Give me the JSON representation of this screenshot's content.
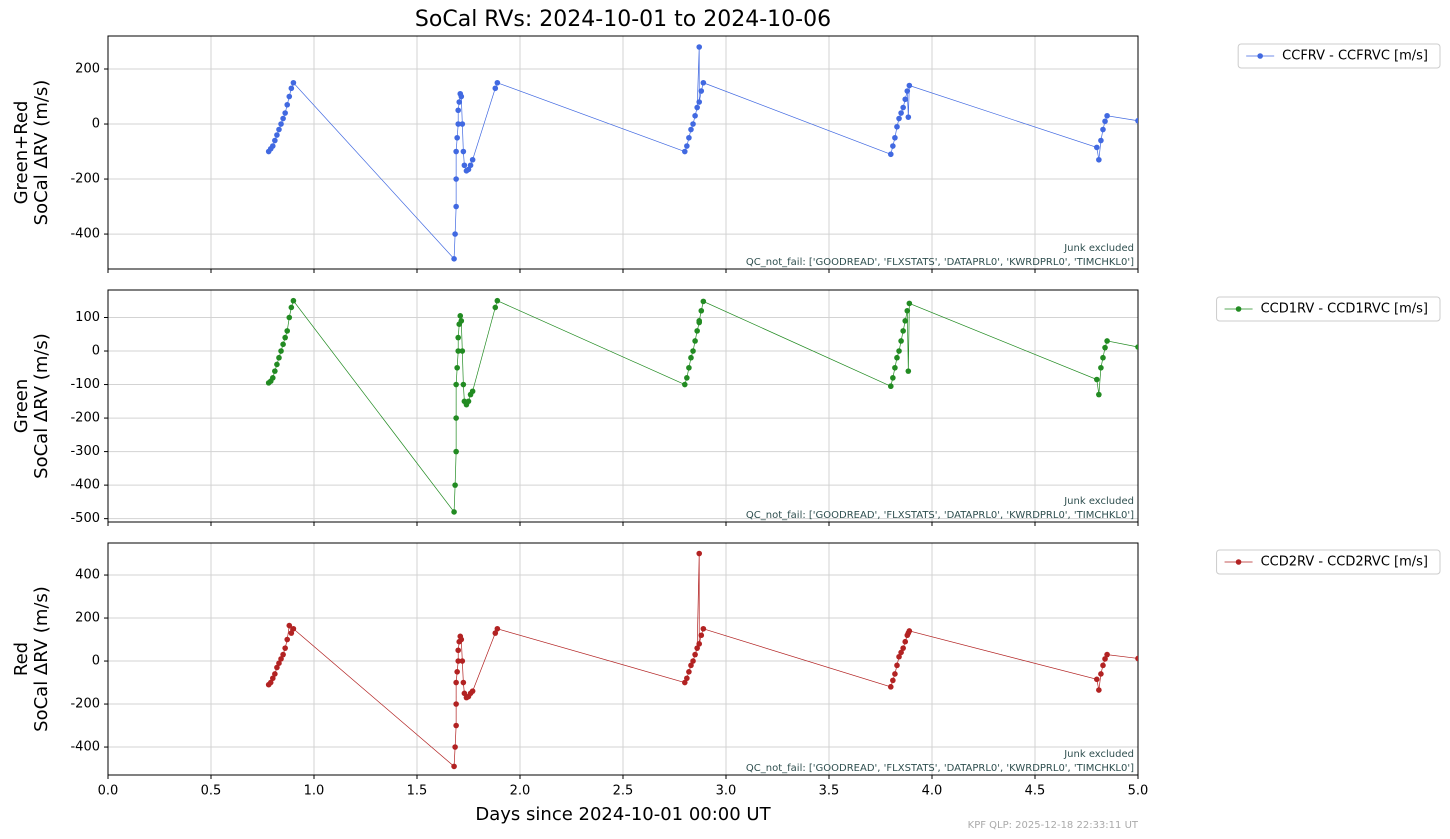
{
  "title": "SoCal RVs: 2024-10-01 to 2024-10-06",
  "footer": "KPF QLP: 2025-12-18 22:33:11 UT",
  "chart_data": [
    {
      "type": "line",
      "ylabel": [
        "Green+Red",
        "SoCal ΔRV (m/s)"
      ],
      "annotations": [
        "Junk excluded",
        "QC_not_fail: ['GOODREAD', 'FLXSTATS', 'DATAPRL0', 'KWRDPRL0', 'TIMCHKL0']"
      ],
      "xlim": [
        0,
        5
      ],
      "ylim": [
        -527,
        320
      ],
      "yticks": [
        -400,
        -200,
        0,
        200
      ],
      "grid": true,
      "legend": "outside-right",
      "x": [
        0.78,
        0.79,
        0.8,
        0.81,
        0.82,
        0.83,
        0.84,
        0.85,
        0.86,
        0.87,
        0.88,
        0.89,
        0.9,
        1.68,
        1.685,
        1.69,
        1.69,
        1.69,
        1.695,
        1.7,
        1.7,
        1.705,
        1.71,
        1.715,
        1.72,
        1.725,
        1.73,
        1.74,
        1.75,
        1.76,
        1.77,
        1.88,
        1.89,
        2.8,
        2.81,
        2.82,
        2.83,
        2.84,
        2.85,
        2.86,
        2.87,
        2.87,
        2.88,
        2.89,
        3.8,
        3.81,
        3.82,
        3.83,
        3.84,
        3.85,
        3.86,
        3.87,
        3.88,
        3.885,
        3.89,
        4.8,
        4.81,
        4.82,
        4.83,
        4.84,
        4.85,
        5.0
      ],
      "series": [
        {
          "name": "CCFRV - CCFRVC [m/s]",
          "color": "#4169e1",
          "values": [
            -100,
            -90,
            -80,
            -60,
            -40,
            -20,
            0,
            20,
            40,
            70,
            100,
            130,
            150,
            -490,
            -400,
            -300,
            -200,
            -100,
            -50,
            0,
            50,
            80,
            110,
            100,
            0,
            -100,
            -150,
            -170,
            -165,
            -150,
            -130,
            130,
            150,
            -100,
            -80,
            -50,
            -20,
            0,
            30,
            60,
            280,
            80,
            120,
            150,
            -110,
            -80,
            -50,
            -10,
            20,
            40,
            60,
            90,
            120,
            25,
            140,
            -85,
            -130,
            -60,
            -20,
            10,
            30,
            12
          ]
        }
      ]
    },
    {
      "type": "line",
      "ylabel": [
        "Green",
        "SoCal ΔRV (m/s)"
      ],
      "annotations": [
        "Junk excluded",
        "QC_not_fail: ['GOODREAD', 'FLXSTATS', 'DATAPRL0', 'KWRDPRL0', 'TIMCHKL0']"
      ],
      "xlim": [
        0,
        5
      ],
      "ylim": [
        -510,
        182
      ],
      "yticks": [
        -500,
        -400,
        -300,
        -200,
        -100,
        0,
        100
      ],
      "grid": true,
      "legend": "outside-right",
      "x": [
        0.78,
        0.79,
        0.8,
        0.81,
        0.82,
        0.83,
        0.84,
        0.85,
        0.86,
        0.87,
        0.88,
        0.89,
        0.9,
        1.68,
        1.685,
        1.69,
        1.69,
        1.69,
        1.695,
        1.7,
        1.7,
        1.705,
        1.71,
        1.715,
        1.72,
        1.725,
        1.73,
        1.74,
        1.75,
        1.76,
        1.77,
        1.88,
        1.89,
        2.8,
        2.81,
        2.82,
        2.83,
        2.84,
        2.85,
        2.86,
        2.87,
        2.87,
        2.88,
        2.89,
        3.8,
        3.81,
        3.82,
        3.83,
        3.84,
        3.85,
        3.86,
        3.87,
        3.88,
        3.885,
        3.89,
        4.8,
        4.81,
        4.82,
        4.83,
        4.84,
        4.85,
        5.0
      ],
      "series": [
        {
          "name": "CCD1RV - CCD1RVC [m/s]",
          "color": "#228b22",
          "values": [
            -95,
            -90,
            -80,
            -60,
            -40,
            -20,
            0,
            20,
            40,
            60,
            100,
            130,
            150,
            -480,
            -400,
            -300,
            -200,
            -100,
            -50,
            0,
            40,
            80,
            105,
            90,
            0,
            -100,
            -150,
            -160,
            -150,
            -130,
            -120,
            130,
            150,
            -100,
            -80,
            -50,
            -20,
            0,
            30,
            60,
            85,
            90,
            120,
            148,
            -105,
            -80,
            -50,
            -20,
            0,
            30,
            60,
            90,
            120,
            -60,
            142,
            -85,
            -130,
            -50,
            -20,
            10,
            30,
            12
          ]
        }
      ]
    },
    {
      "type": "line",
      "ylabel": [
        "Red",
        "SoCal ΔRV (m/s)"
      ],
      "xlabel": "Days since 2024-10-01 00:00 UT",
      "annotations": [
        "Junk excluded",
        "QC_not_fail: ['GOODREAD', 'FLXSTATS', 'DATAPRL0', 'KWRDPRL0', 'TIMCHKL0']"
      ],
      "xlim": [
        0,
        5
      ],
      "ylim": [
        -530,
        549
      ],
      "yticks": [
        -400,
        -200,
        0,
        200,
        400
      ],
      "xticks": [
        {
          "value": 0,
          "label": "0.0"
        },
        0.5,
        {
          "value": 1,
          "label": "1.0"
        },
        1.5,
        {
          "value": 2,
          "label": "2.0"
        },
        2.5,
        {
          "value": 3,
          "label": "3.0"
        },
        3.5,
        {
          "value": 4,
          "label": "4.0"
        },
        4.5,
        {
          "value": 5,
          "label": "5.0"
        }
      ],
      "grid": true,
      "legend": "outside-right",
      "x": [
        0.78,
        0.79,
        0.8,
        0.81,
        0.82,
        0.83,
        0.84,
        0.85,
        0.86,
        0.87,
        0.88,
        0.89,
        0.9,
        1.68,
        1.685,
        1.69,
        1.69,
        1.69,
        1.695,
        1.7,
        1.7,
        1.705,
        1.71,
        1.715,
        1.72,
        1.725,
        1.73,
        1.74,
        1.75,
        1.76,
        1.77,
        1.88,
        1.89,
        2.8,
        2.81,
        2.82,
        2.83,
        2.84,
        2.85,
        2.86,
        2.87,
        2.87,
        2.88,
        2.89,
        3.8,
        3.81,
        3.82,
        3.83,
        3.84,
        3.85,
        3.86,
        3.87,
        3.88,
        3.885,
        3.89,
        4.8,
        4.81,
        4.82,
        4.83,
        4.84,
        4.85,
        5.0
      ],
      "series": [
        {
          "name": "CCD2RV - CCD2RVC [m/s]",
          "color": "#b22222",
          "values": [
            -110,
            -100,
            -80,
            -60,
            -30,
            -10,
            10,
            30,
            60,
            100,
            165,
            130,
            150,
            -490,
            -400,
            -300,
            -200,
            -100,
            -50,
            0,
            50,
            90,
            115,
            100,
            0,
            -100,
            -150,
            -170,
            -165,
            -150,
            -140,
            130,
            150,
            -100,
            -80,
            -50,
            -20,
            0,
            30,
            60,
            500,
            80,
            120,
            150,
            -120,
            -90,
            -60,
            -20,
            20,
            40,
            60,
            90,
            120,
            130,
            140,
            -85,
            -135,
            -60,
            -20,
            10,
            30,
            12
          ]
        }
      ]
    }
  ]
}
